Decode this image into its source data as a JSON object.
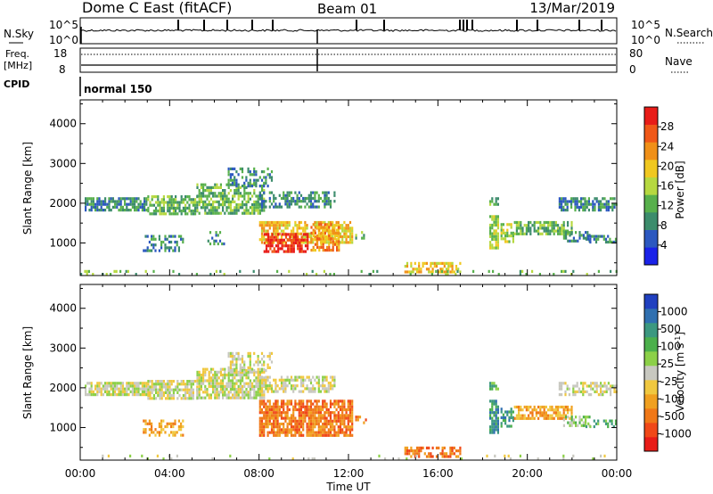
{
  "header": {
    "station": "Dome C East (fitACF)",
    "beam": "Beam 01",
    "date": "13/Mar/2019"
  },
  "left_labels": {
    "nsky": "N.Sky",
    "freq_line1": "Freq.",
    "freq_line2": "[MHz]",
    "cpid": "CPID"
  },
  "right_labels": {
    "nsearch": "N.Search",
    "nave": "Nave"
  },
  "nsky_ticks": {
    "top": "10^5",
    "bottom": "10^0"
  },
  "freq_ticks": {
    "left_top": "18",
    "left_bottom": "8",
    "right_top": "80",
    "right_bottom": "0"
  },
  "cpid_text": "normal 150",
  "xlabel": "Time UT",
  "colors": {
    "power": [
      "#1a22e8",
      "#2c58c0",
      "#3c8c6c",
      "#58b04c",
      "#b6d840",
      "#f0c820",
      "#f09018",
      "#f05818",
      "#e81c18"
    ],
    "velocity": [
      "#e81c18",
      "#f04818",
      "#f07818",
      "#f0a020",
      "#f0c840",
      "#c8c8c0",
      "#8cd048",
      "#4cb04c",
      "#3c9880",
      "#3070b0",
      "#2040c0"
    ]
  },
  "chart_data": [
    {
      "type": "heatmap",
      "name": "power-panel",
      "xlabel": "Time UT",
      "ylabel": "Slant Range [km]",
      "x_ticks": [
        "00:00",
        "04:00",
        "08:00",
        "12:00",
        "16:00",
        "20:00",
        "00:00"
      ],
      "x_range_hours": [
        0,
        24
      ],
      "y_range_km": [
        180,
        4600
      ],
      "y_ticks": [
        "1000",
        "2000",
        "3000",
        "4000"
      ],
      "colorbar": {
        "label": "Power [dB]",
        "ticks": [
          "4",
          "8",
          "12",
          "16",
          "20",
          "24",
          "28"
        ],
        "range": [
          0,
          32
        ]
      },
      "patches": [
        {
          "t0": 0.2,
          "t1": 3.0,
          "r0": 1800,
          "r1": 2150,
          "level": 2,
          "density": 0.75
        },
        {
          "t0": 3.0,
          "t1": 5.2,
          "r0": 1700,
          "r1": 2200,
          "level": 3,
          "density": 0.7
        },
        {
          "t0": 5.2,
          "t1": 8.2,
          "r0": 1750,
          "r1": 2500,
          "level": 3,
          "density": 0.65
        },
        {
          "t0": 6.6,
          "t1": 8.6,
          "r0": 2400,
          "r1": 2900,
          "level": 2,
          "density": 0.4
        },
        {
          "t0": 8.0,
          "t1": 11.4,
          "r0": 1900,
          "r1": 2300,
          "level": 2,
          "density": 0.55
        },
        {
          "t0": 2.8,
          "t1": 4.6,
          "r0": 800,
          "r1": 1200,
          "level": 2,
          "density": 0.45
        },
        {
          "t0": 5.6,
          "t1": 6.4,
          "r0": 1000,
          "r1": 1300,
          "level": 2,
          "density": 0.3
        },
        {
          "t0": 8.0,
          "t1": 12.2,
          "r0": 1000,
          "r1": 1550,
          "level": 5,
          "density": 0.7
        },
        {
          "t0": 8.2,
          "t1": 10.2,
          "r0": 750,
          "r1": 1250,
          "level": 8,
          "density": 0.7
        },
        {
          "t0": 10.3,
          "t1": 11.6,
          "r0": 850,
          "r1": 1500,
          "level": 6,
          "density": 0.6
        },
        {
          "t0": 12.3,
          "t1": 12.8,
          "r0": 1100,
          "r1": 1300,
          "level": 3,
          "density": 0.3
        },
        {
          "t0": 14.5,
          "t1": 17.0,
          "r0": 300,
          "r1": 520,
          "level": 5,
          "density": 0.55
        },
        {
          "t0": 18.3,
          "t1": 18.7,
          "r0": 850,
          "r1": 1700,
          "level": 4,
          "density": 0.75
        },
        {
          "t0": 18.3,
          "t1": 18.7,
          "r0": 1950,
          "r1": 2150,
          "level": 3,
          "density": 0.7
        },
        {
          "t0": 18.8,
          "t1": 19.4,
          "r0": 1000,
          "r1": 1500,
          "level": 4,
          "density": 0.55
        },
        {
          "t0": 19.4,
          "t1": 22.0,
          "r0": 1250,
          "r1": 1550,
          "level": 3,
          "density": 0.7
        },
        {
          "t0": 21.6,
          "t1": 22.8,
          "r0": 1050,
          "r1": 1300,
          "level": 2,
          "density": 0.5
        },
        {
          "t0": 22.6,
          "t1": 24.0,
          "r0": 1050,
          "r1": 1200,
          "level": 2,
          "density": 0.5
        },
        {
          "t0": 21.4,
          "t1": 24.0,
          "r0": 1850,
          "r1": 2150,
          "level": 2,
          "density": 0.65
        },
        {
          "t0": 0.0,
          "t1": 24.0,
          "r0": 180,
          "r1": 320,
          "level": 3,
          "density": 0.09
        }
      ]
    },
    {
      "type": "heatmap",
      "name": "velocity-panel",
      "xlabel": "Time UT",
      "ylabel": "Slant Range [km]",
      "x_ticks": [
        "00:00",
        "04:00",
        "08:00",
        "12:00",
        "16:00",
        "20:00",
        "00:00"
      ],
      "x_range_hours": [
        0,
        24
      ],
      "y_range_km": [
        180,
        4600
      ],
      "y_ticks": [
        "1000",
        "2000",
        "3000",
        "4000"
      ],
      "colorbar": {
        "label": "Velocity [m s-1]",
        "ticks": [
          "-1000",
          "-500",
          "-100",
          "-25",
          "25",
          "100",
          "500",
          "1000"
        ],
        "range": [
          -1200,
          1200
        ]
      },
      "patches": [
        {
          "t0": 0.2,
          "t1": 3.0,
          "r0": 1800,
          "r1": 2150,
          "level": 5,
          "density": 0.8
        },
        {
          "t0": 3.0,
          "t1": 5.2,
          "r0": 1700,
          "r1": 2200,
          "level": 5,
          "density": 0.8
        },
        {
          "t0": 5.2,
          "t1": 8.2,
          "r0": 1750,
          "r1": 2500,
          "level": 5,
          "density": 0.75
        },
        {
          "t0": 6.6,
          "t1": 8.6,
          "r0": 2400,
          "r1": 2900,
          "level": 5,
          "density": 0.45
        },
        {
          "t0": 8.0,
          "t1": 11.4,
          "r0": 1900,
          "r1": 2300,
          "level": 5,
          "density": 0.6
        },
        {
          "t0": 2.8,
          "t1": 4.6,
          "r0": 800,
          "r1": 1200,
          "level": 3,
          "density": 0.45
        },
        {
          "t0": 8.0,
          "t1": 12.2,
          "r0": 800,
          "r1": 1700,
          "level": 2,
          "density": 0.8
        },
        {
          "t0": 12.3,
          "t1": 12.8,
          "r0": 1100,
          "r1": 1300,
          "level": 2,
          "density": 0.3
        },
        {
          "t0": 14.5,
          "t1": 17.0,
          "r0": 300,
          "r1": 520,
          "level": 2,
          "density": 0.55
        },
        {
          "t0": 18.3,
          "t1": 18.7,
          "r0": 850,
          "r1": 1700,
          "level": 8,
          "density": 0.8
        },
        {
          "t0": 18.3,
          "t1": 18.7,
          "r0": 1950,
          "r1": 2150,
          "level": 7,
          "density": 0.7
        },
        {
          "t0": 18.8,
          "t1": 19.4,
          "r0": 1000,
          "r1": 1500,
          "level": 8,
          "density": 0.55
        },
        {
          "t0": 19.4,
          "t1": 22.0,
          "r0": 1250,
          "r1": 1550,
          "level": 3,
          "density": 0.7
        },
        {
          "t0": 21.6,
          "t1": 22.8,
          "r0": 1050,
          "r1": 1300,
          "level": 6,
          "density": 0.5
        },
        {
          "t0": 22.6,
          "t1": 24.0,
          "r0": 1050,
          "r1": 1200,
          "level": 7,
          "density": 0.5
        },
        {
          "t0": 21.4,
          "t1": 24.0,
          "r0": 1850,
          "r1": 2150,
          "level": 5,
          "density": 0.6
        },
        {
          "t0": 0.0,
          "t1": 24.0,
          "r0": 180,
          "r1": 320,
          "level": 5,
          "density": 0.08
        }
      ]
    }
  ]
}
